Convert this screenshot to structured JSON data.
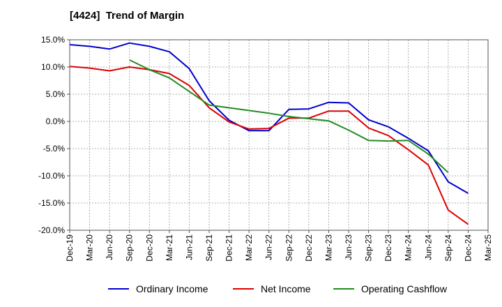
{
  "chart_data": {
    "type": "line",
    "title": "[4424]  Trend of Margin",
    "xlabel": "",
    "ylabel": "",
    "categories": [
      "Dec-19",
      "Mar-20",
      "Jun-20",
      "Sep-20",
      "Dec-20",
      "Mar-21",
      "Jun-21",
      "Sep-21",
      "Dec-21",
      "Mar-22",
      "Jun-22",
      "Sep-22",
      "Dec-22",
      "Mar-23",
      "Jun-23",
      "Sep-23",
      "Dec-23",
      "Mar-24",
      "Jun-24",
      "Sep-24",
      "Dec-24",
      "Mar-25"
    ],
    "ylim": [
      -20,
      15
    ],
    "yticks": [
      15,
      10,
      5,
      0,
      -5,
      -10,
      -15,
      -20
    ],
    "ytick_labels": [
      "15.0%",
      "10.0%",
      "5.0%",
      "0.0%",
      "-5.0%",
      "-10.0%",
      "-15.0%",
      "-20.0%"
    ],
    "grid": true,
    "legend_position": "bottom",
    "series": [
      {
        "name": "Ordinary Income",
        "color": "#0000cc",
        "values": [
          14.1,
          13.8,
          13.3,
          14.4,
          13.8,
          12.8,
          9.7,
          3.8,
          0.2,
          -1.7,
          -1.7,
          2.2,
          2.3,
          3.5,
          3.4,
          0.3,
          -1.0,
          -3.1,
          -5.4,
          -11.1,
          -13.2,
          null
        ]
      },
      {
        "name": "Net Income",
        "color": "#dd0000",
        "values": [
          10.1,
          9.8,
          9.3,
          10.0,
          9.5,
          8.8,
          6.6,
          2.5,
          -0.1,
          -1.4,
          -1.3,
          0.6,
          0.6,
          1.9,
          1.9,
          -1.2,
          -2.6,
          -5.2,
          -8.0,
          -16.3,
          -18.9,
          null
        ]
      },
      {
        "name": "Operating Cashflow",
        "color": "#228B22",
        "values": [
          null,
          null,
          null,
          11.3,
          9.5,
          8.0,
          5.5,
          3.0,
          2.5,
          2.0,
          1.5,
          0.9,
          0.5,
          0.1,
          -1.6,
          -3.5,
          -3.6,
          -3.5,
          -6.0,
          -9.4,
          null,
          null
        ]
      }
    ]
  }
}
